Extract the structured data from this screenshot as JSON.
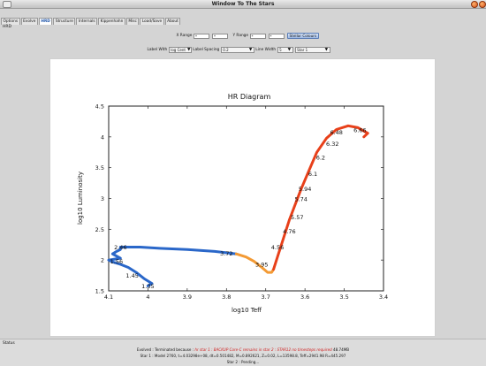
{
  "window": {
    "title": "Window To The Stars"
  },
  "tabs": [
    {
      "label": "Options",
      "active": false
    },
    {
      "label": "Evolve",
      "active": false
    },
    {
      "label": "HRD",
      "active": true
    },
    {
      "label": "Structure",
      "active": false
    },
    {
      "label": "Internals",
      "active": false
    },
    {
      "label": "Kippenhahn",
      "active": false
    },
    {
      "label": "Misc",
      "active": false
    },
    {
      "label": "Load/Save",
      "active": false
    },
    {
      "label": "About",
      "active": false
    }
  ],
  "panel": {
    "label": "HRD"
  },
  "controls": {
    "x_range_label": "X Range",
    "x_range_min": "*",
    "x_range_max": "*",
    "y_range_label": "Y Range",
    "y_range_min": "*",
    "y_range_max": "*",
    "stellar_colours_label": "Stellar Colours",
    "label_with_label": "Label With",
    "label_with_value": "log Cent",
    "label_spacing_label": "Label Spacing",
    "label_spacing_value": "0.2",
    "line_width_label": "Line Width",
    "line_width_value": "5",
    "star_value": "Star 1"
  },
  "chart_data": {
    "type": "line",
    "title": "HR Diagram",
    "xlabel": "log10 Teff",
    "ylabel": "log10 Luminosity",
    "xlim": [
      4.1,
      3.4
    ],
    "ylim": [
      1.5,
      4.5
    ],
    "x_ticks": [
      "4.1",
      "4",
      "3.9",
      "3.8",
      "3.7",
      "3.6",
      "3.5",
      "3.4"
    ],
    "y_ticks": [
      "1.5",
      "2",
      "2.5",
      "3",
      "3.5",
      "4",
      "4.5"
    ],
    "grid": false,
    "series": [
      {
        "segment": "main-sequence",
        "color": "#2a67c9",
        "x": [
          4.0,
          3.99,
          4.01,
          4.03,
          4.05,
          4.07,
          4.09,
          4.1,
          4.07,
          4.09,
          4.08,
          4.07,
          4.07,
          4.02,
          3.97,
          3.9,
          3.83,
          3.775
        ],
        "y": [
          1.58,
          1.62,
          1.7,
          1.8,
          1.88,
          1.93,
          1.97,
          2.0,
          2.03,
          2.1,
          2.14,
          2.17,
          2.21,
          2.21,
          2.19,
          2.17,
          2.14,
          2.1
        ]
      },
      {
        "segment": "subgiant",
        "color": "#f39a34",
        "x": [
          3.775,
          3.75,
          3.73,
          3.71,
          3.695,
          3.685,
          3.68
        ],
        "y": [
          2.1,
          2.05,
          1.98,
          1.88,
          1.8,
          1.8,
          1.85
        ]
      },
      {
        "segment": "red-giant",
        "color": "#e8401a",
        "x": [
          3.68,
          3.67,
          3.655,
          3.64,
          3.625,
          3.61,
          3.59,
          3.57,
          3.545,
          3.52,
          3.49,
          3.465,
          3.44,
          3.45
        ],
        "y": [
          1.85,
          2.05,
          2.35,
          2.65,
          2.9,
          3.15,
          3.45,
          3.75,
          3.98,
          4.12,
          4.18,
          4.15,
          4.06,
          4.0
        ]
      }
    ],
    "annotations": [
      {
        "x": 4.0,
        "y": 1.58,
        "text": "1.35"
      },
      {
        "x": 4.04,
        "y": 1.75,
        "text": "1.45"
      },
      {
        "x": 4.08,
        "y": 1.98,
        "text": "1.56"
      },
      {
        "x": 4.07,
        "y": 2.21,
        "text": "2.46"
      },
      {
        "x": 3.8,
        "y": 2.11,
        "text": "3.72"
      },
      {
        "x": 3.71,
        "y": 1.93,
        "text": "3.95"
      },
      {
        "x": 3.67,
        "y": 2.21,
        "text": "4.56"
      },
      {
        "x": 3.64,
        "y": 2.47,
        "text": "4.76"
      },
      {
        "x": 3.62,
        "y": 2.7,
        "text": "5.57"
      },
      {
        "x": 3.61,
        "y": 2.99,
        "text": "5.74"
      },
      {
        "x": 3.6,
        "y": 3.16,
        "text": "5.94"
      },
      {
        "x": 3.58,
        "y": 3.4,
        "text": "6.1"
      },
      {
        "x": 3.56,
        "y": 3.67,
        "text": "6.2"
      },
      {
        "x": 3.53,
        "y": 3.89,
        "text": "6.32"
      },
      {
        "x": 3.52,
        "y": 4.08,
        "text": "6.48"
      },
      {
        "x": 3.46,
        "y": 4.11,
        "text": "6.66"
      }
    ]
  },
  "status": {
    "label": "Status",
    "evolved_prefix": "Evolved : Terminated because :",
    "evolved_reason": "hr star 1 : BACKUP Core-C remains in star 2 : STAR12 no timesteps required",
    "evolved_value": "48.74MB",
    "star1_line": "Star 1 : Model 2760, t=4.03298e+08, dt=0.501482, M=0.892621, Z=0.02, L=13598.8, Teff=2941.98 R=445.297",
    "star2_line": "Star 2 : Pending..."
  }
}
